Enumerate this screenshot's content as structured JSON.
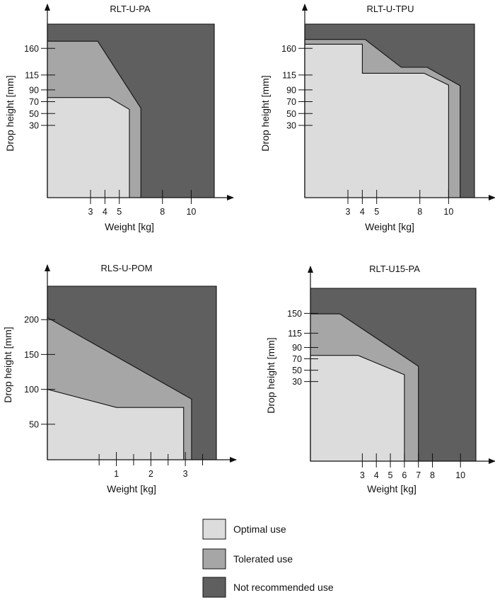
{
  "colors": {
    "optimal": "#dcdcdc",
    "tolerated": "#a6a6a6",
    "not_recommended": "#5f5f5f",
    "line": "#111111"
  },
  "legend": [
    {
      "key": "optimal",
      "label": "Optimal use"
    },
    {
      "key": "tolerated",
      "label": "Tolerated use"
    },
    {
      "key": "not_recommended",
      "label": "Not recommended use"
    }
  ],
  "chart_data": [
    {
      "type": "area",
      "title": "RLT-U-PA",
      "xlabel": "Weight [kg]",
      "ylabel": "Drop height  [mm]",
      "xlim": [
        0,
        11.6
      ],
      "ylim": [
        -92,
        201
      ],
      "x_ticks": [
        3,
        4,
        5,
        8,
        10
      ],
      "y_ticks": [
        30,
        50,
        70,
        90,
        115,
        160
      ],
      "regions": {
        "optimal": [
          [
            0,
            -92
          ],
          [
            0,
            77
          ],
          [
            4.3,
            77
          ],
          [
            5.7,
            57
          ],
          [
            5.7,
            -92
          ]
        ],
        "tolerated": [
          [
            0,
            -92
          ],
          [
            0,
            172
          ],
          [
            3.5,
            172
          ],
          [
            6.5,
            59
          ],
          [
            6.5,
            -92
          ]
        ],
        "not_recommended": [
          [
            0,
            -92
          ],
          [
            0,
            201
          ],
          [
            11.6,
            201
          ],
          [
            11.6,
            -92
          ]
        ]
      }
    },
    {
      "type": "area",
      "title": "RLT-U-TPU",
      "xlabel": "Weight [kg]",
      "ylabel": "Drop height  [mm]",
      "xlim": [
        0,
        11.8
      ],
      "ylim": [
        -92,
        201
      ],
      "x_ticks": [
        3,
        4,
        5,
        8,
        10
      ],
      "y_ticks": [
        30,
        50,
        70,
        90,
        115,
        160
      ],
      "regions": {
        "optimal": [
          [
            0,
            -92
          ],
          [
            0,
            167
          ],
          [
            4,
            167
          ],
          [
            4,
            118
          ],
          [
            8.3,
            118
          ],
          [
            10,
            98
          ],
          [
            10,
            -92
          ]
        ],
        "tolerated": [
          [
            0,
            -92
          ],
          [
            0,
            175
          ],
          [
            4.2,
            175
          ],
          [
            6.7,
            128
          ],
          [
            8.5,
            128
          ],
          [
            10.8,
            97
          ],
          [
            10.8,
            -92
          ]
        ],
        "not_recommended": [
          [
            0,
            -92
          ],
          [
            0,
            201
          ],
          [
            11.8,
            201
          ],
          [
            11.8,
            -92
          ]
        ]
      }
    },
    {
      "type": "area",
      "title": "RLS-U-POM",
      "xlabel": "Weight [kg]",
      "ylabel": "Drop height  [mm]",
      "xlim": [
        -1,
        3.9
      ],
      "ylim": [
        -1,
        248
      ],
      "x_ticks": [
        1,
        2,
        3
      ],
      "minor_x_ticks": [
        0.5,
        1.5,
        2.5,
        3.5
      ],
      "y_ticks": [
        50,
        100,
        150,
        200
      ],
      "regions": {
        "optimal": [
          [
            -1,
            -1
          ],
          [
            -1,
            100
          ],
          [
            1,
            74
          ],
          [
            2.95,
            74
          ],
          [
            2.95,
            -1
          ]
        ],
        "tolerated": [
          [
            -1,
            -1
          ],
          [
            -1,
            203
          ],
          [
            3.18,
            86
          ],
          [
            3.18,
            -1
          ]
        ],
        "not_recommended": [
          [
            -1,
            -1
          ],
          [
            -1,
            248
          ],
          [
            3.9,
            248
          ],
          [
            3.9,
            -1
          ]
        ]
      }
    },
    {
      "type": "area",
      "title": "RLT-U15-PA",
      "xlabel": "Weight [kg]",
      "ylabel": "Drop height  [mm]",
      "xlim": [
        -0.7,
        11.1
      ],
      "ylim": [
        -110,
        194
      ],
      "x_ticks": [
        3,
        4,
        5,
        6,
        7,
        8,
        10
      ],
      "y_ticks": [
        30,
        50,
        70,
        90,
        115,
        150
      ],
      "regions": {
        "optimal": [
          [
            -0.7,
            -110
          ],
          [
            -0.7,
            76
          ],
          [
            2.7,
            76
          ],
          [
            6,
            42
          ],
          [
            6,
            -110
          ]
        ],
        "tolerated": [
          [
            -0.7,
            -110
          ],
          [
            -0.7,
            149
          ],
          [
            1.4,
            149
          ],
          [
            7,
            57
          ],
          [
            7,
            -110
          ]
        ],
        "not_recommended": [
          [
            -0.7,
            -110
          ],
          [
            -0.7,
            194
          ],
          [
            11.1,
            194
          ],
          [
            11.1,
            -110
          ]
        ]
      }
    }
  ]
}
